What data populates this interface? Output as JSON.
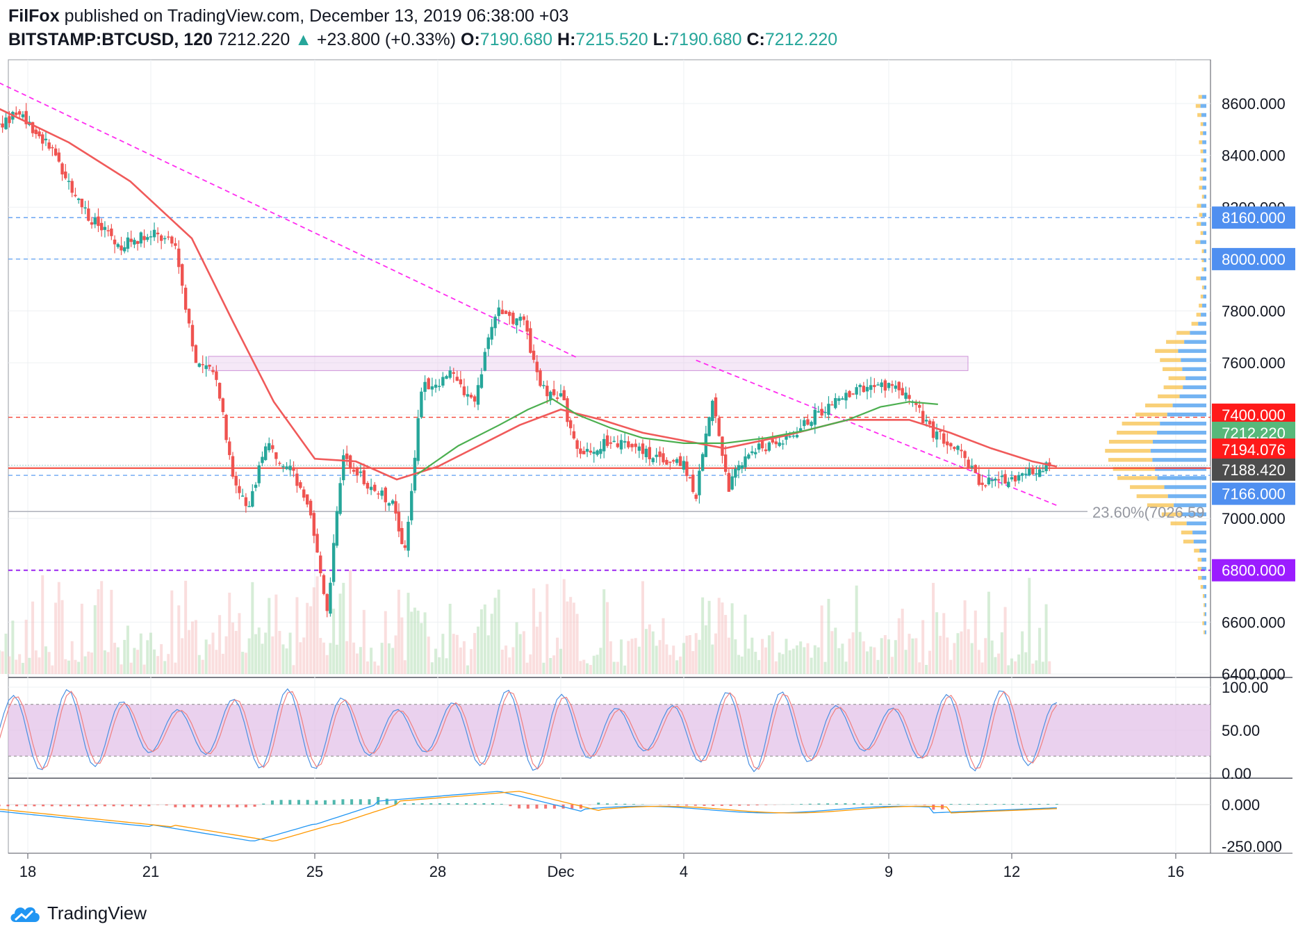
{
  "header": {
    "author": "FilFox",
    "published_text": "published on TradingView.com, December 13, 2019 06:38:00 +03",
    "symbol": "BITSTAMP:BTCUSD, 120",
    "last": "7212.220",
    "change_arrow": "▲",
    "change": "+23.800 (+0.33%)",
    "o_label": "O:",
    "o": "7190.680",
    "h_label": "H:",
    "h": "7215.520",
    "l_label": "L:",
    "l": "7190.680",
    "c_label": "C:",
    "c": "7212.220"
  },
  "footer": {
    "brand": "TradingView",
    "logo_icon": "tradingview-cloud-icon"
  },
  "colors": {
    "up": "#26a69a",
    "down": "#ef5350",
    "ma_red": "#f05a5a",
    "ma_green": "#4caf50",
    "trend": "#ff2df0",
    "blue_level": "#5b9cf2",
    "red_level": "#f44336",
    "purple_level": "#9c27f0",
    "rsi_band": "#e1bee7"
  },
  "chart_data": [
    {
      "type": "candlestick",
      "name": "price",
      "x_tick_labels": [
        "18",
        "21",
        "25",
        "28",
        "Dec",
        "4",
        "9",
        "12",
        "16"
      ],
      "x_tick_days": [
        18,
        21,
        25,
        28,
        31,
        34,
        39,
        42,
        46
      ],
      "y_ticks": [
        8600,
        8400,
        8200,
        8000,
        7800,
        7600,
        7400,
        7200,
        7000,
        6800,
        6600,
        6400
      ],
      "y_tick_labels": [
        "8600.000",
        "8400.000",
        "8200.000",
        "8000.000",
        "7800.000",
        "7600.000",
        "7400.000",
        "7200.000",
        "7000.000",
        "6800.000",
        "6600.000",
        "6400.000"
      ],
      "ylim": [
        6400,
        8700
      ],
      "price_path": [
        [
          17.3,
          8520
        ],
        [
          17.8,
          8560
        ],
        [
          18.6,
          8420
        ],
        [
          19.4,
          8180
        ],
        [
          20.2,
          8050
        ],
        [
          21.0,
          8100
        ],
        [
          21.6,
          8050
        ],
        [
          22.1,
          7600
        ],
        [
          22.6,
          7550
        ],
        [
          23.0,
          7150
        ],
        [
          23.4,
          7050
        ],
        [
          23.8,
          7280
        ],
        [
          24.4,
          7200
        ],
        [
          24.9,
          7000
        ],
        [
          25.3,
          6650
        ],
        [
          25.7,
          7250
        ],
        [
          26.2,
          7150
        ],
        [
          26.9,
          7050
        ],
        [
          27.2,
          6870
        ],
        [
          27.6,
          7500
        ],
        [
          28.3,
          7550
        ],
        [
          28.9,
          7450
        ],
        [
          29.4,
          7800
        ],
        [
          30.1,
          7750
        ],
        [
          30.5,
          7500
        ],
        [
          31.0,
          7480
        ],
        [
          31.4,
          7250
        ],
        [
          32.3,
          7300
        ],
        [
          33.0,
          7260
        ],
        [
          34.0,
          7200
        ],
        [
          34.3,
          7090
        ],
        [
          34.7,
          7450
        ],
        [
          35.1,
          7120
        ],
        [
          35.5,
          7250
        ],
        [
          36.5,
          7300
        ],
        [
          37.2,
          7400
        ],
        [
          37.7,
          7450
        ],
        [
          38.3,
          7500
        ],
        [
          39.0,
          7510
        ],
        [
          39.5,
          7480
        ],
        [
          40.0,
          7340
        ],
        [
          40.6,
          7280
        ],
        [
          41.2,
          7140
        ],
        [
          42.0,
          7150
        ],
        [
          42.6,
          7188
        ],
        [
          43.0,
          7200
        ]
      ],
      "ma_red_path": [
        [
          17.3,
          8580
        ],
        [
          19.0,
          8450
        ],
        [
          20.5,
          8300
        ],
        [
          22.0,
          8080
        ],
        [
          23.0,
          7760
        ],
        [
          24.0,
          7450
        ],
        [
          25.0,
          7230
        ],
        [
          26.0,
          7220
        ],
        [
          27.0,
          7150
        ],
        [
          28.0,
          7200
        ],
        [
          29.0,
          7280
        ],
        [
          30.0,
          7360
        ],
        [
          31.0,
          7420
        ],
        [
          32.0,
          7380
        ],
        [
          33.0,
          7330
        ],
        [
          34.0,
          7300
        ],
        [
          35.0,
          7270
        ],
        [
          36.5,
          7320
        ],
        [
          38.0,
          7380
        ],
        [
          39.5,
          7380
        ],
        [
          40.5,
          7330
        ],
        [
          41.5,
          7270
        ],
        [
          42.5,
          7220
        ],
        [
          43.1,
          7200
        ]
      ],
      "ma_green_path": [
        [
          27.5,
          7170
        ],
        [
          28.5,
          7280
        ],
        [
          29.5,
          7360
        ],
        [
          30.2,
          7420
        ],
        [
          30.8,
          7460
        ],
        [
          31.4,
          7400
        ],
        [
          32.2,
          7350
        ],
        [
          33.0,
          7310
        ],
        [
          34.0,
          7290
        ],
        [
          35.0,
          7290
        ],
        [
          36.0,
          7310
        ],
        [
          37.0,
          7340
        ],
        [
          38.0,
          7380
        ],
        [
          38.8,
          7430
        ],
        [
          39.5,
          7450
        ],
        [
          40.2,
          7440
        ]
      ],
      "trendlines": [
        {
          "from": [
            17.3,
            8680
          ],
          "to": [
            31.4,
            7620
          ]
        },
        {
          "from": [
            34.3,
            7610
          ],
          "to": [
            43.1,
            7050
          ]
        }
      ],
      "level_labels": [
        {
          "value": 8160,
          "label": "8160.000",
          "style": "blue"
        },
        {
          "value": 8000,
          "label": "8000.000",
          "style": "blue"
        },
        {
          "value": 7400,
          "label": "7400.000",
          "style": "red"
        },
        {
          "value": 7212.22,
          "label": "7212.220",
          "style": "green"
        },
        {
          "value": 7194.076,
          "label": "7194.076",
          "style": "red"
        },
        {
          "value": 7188.42,
          "label": "7188.420",
          "style": "dark"
        },
        {
          "value": 7166,
          "label": "7166.000",
          "style": "blue"
        },
        {
          "value": 6800,
          "label": "6800.000",
          "style": "purple"
        }
      ],
      "dashed_levels": [
        8160,
        8000,
        7390,
        7166,
        6800
      ],
      "zone": [
        7570,
        7625
      ],
      "fib_label": "23.60%(7026.59",
      "fib_value": 7026.59
    },
    {
      "type": "line",
      "name": "stoch-rsi",
      "y_tick_labels": [
        "100.00",
        "50.00",
        "0.00"
      ],
      "y_ticks": [
        100,
        50,
        0
      ],
      "band": [
        20,
        80
      ],
      "ylim": [
        -5,
        105
      ]
    },
    {
      "type": "histogram",
      "name": "macd",
      "y_tick_labels": [
        "0.000",
        "-250.000"
      ],
      "y_ticks": [
        0,
        -250
      ],
      "ylim": [
        -270,
        130
      ]
    }
  ]
}
